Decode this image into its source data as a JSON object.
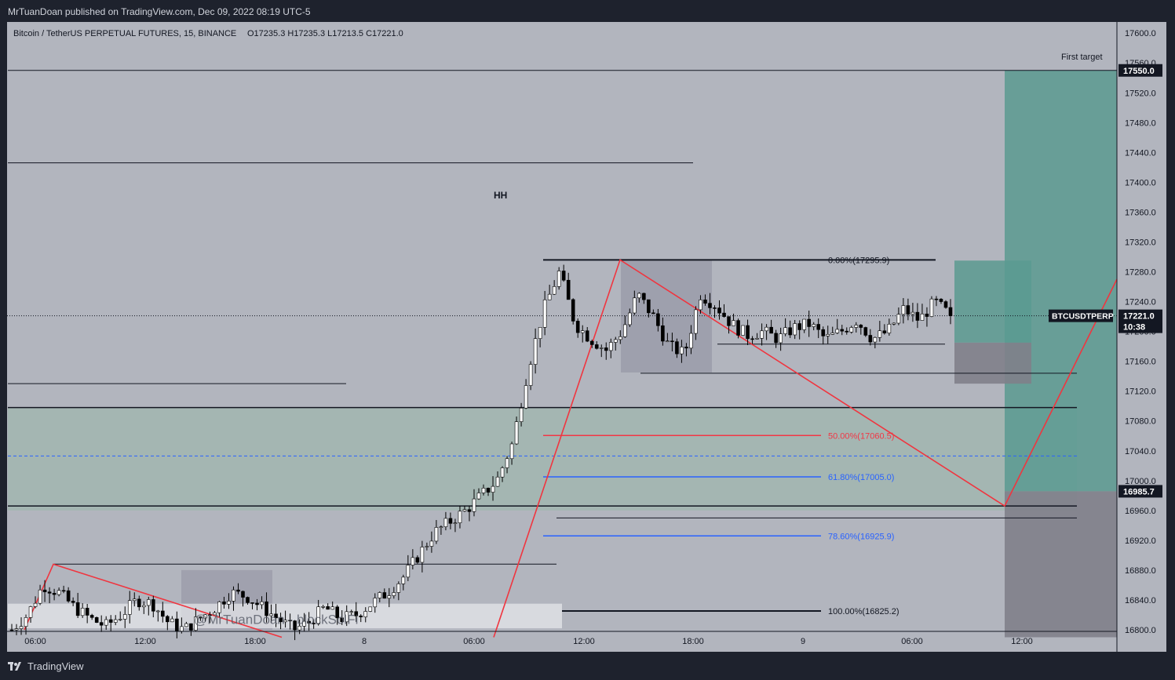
{
  "header": {
    "published": "MrTuanDoan published on TradingView.com, Dec 09, 2022 08:19 UTC-5"
  },
  "footer": {
    "brand": "TradingView"
  },
  "watermark": "@MrTuanDoan - blockSolFi",
  "colors": {
    "background": "#b2b5be",
    "chrome": "#1e222d",
    "bull": "#ffffff",
    "bear": "#000000",
    "trend": "#f0353f",
    "fib_blue": "#2962ff",
    "fib_red": "#f23645",
    "target_zone": "#5a9a90",
    "stop_zone": "#7f7f8a"
  },
  "chart_data": {
    "type": "candlestick",
    "title": "Bitcoin / TetherUS PERPETUAL FUTURES, 15, BINANCE",
    "ohlc_label": {
      "open": "O17235.3",
      "high": "H17235.3",
      "low": "L17213.5",
      "close": "C17221.0"
    },
    "symbol": "BTCUSDTPERP",
    "last_price": "17221.0",
    "countdown": "10:38",
    "y_axis": {
      "min": 16790,
      "max": 17610,
      "ticks": [
        "17600.0",
        "17560.0",
        "17520.0",
        "17480.0",
        "17440.0",
        "17400.0",
        "17360.0",
        "17320.0",
        "17280.0",
        "17240.0",
        "17200.0",
        "17160.0",
        "17120.0",
        "17080.0",
        "17040.0",
        "17000.0",
        "16960.0",
        "16920.0",
        "16880.0",
        "16840.0",
        "16800.0"
      ]
    },
    "x_axis": {
      "ticks": [
        "06:00",
        "12:00",
        "18:00",
        "8",
        "06:00",
        "12:00",
        "18:00",
        "9",
        "06:00",
        "12:00"
      ]
    },
    "price_tags": [
      {
        "label": "First target",
        "value": "17550.0"
      },
      {
        "label": "",
        "value": "16985.7"
      }
    ],
    "annotations": [
      "HH",
      "First target"
    ],
    "fibonacci": [
      {
        "ratio": "0.00%",
        "price": 17295.9,
        "label": "0.00%(17295.9)"
      },
      {
        "ratio": "50.00%",
        "price": 17060.5,
        "label": "50.00%(17060.5)"
      },
      {
        "ratio": "61.80%",
        "price": 17005.0,
        "label": "61.80%(17005.0)"
      },
      {
        "ratio": "78.60%",
        "price": 16925.9,
        "label": "78.60%(16925.9)"
      },
      {
        "ratio": "100.00%",
        "price": 16825.2,
        "label": "100.00%(16825.2)"
      }
    ],
    "candles_anchor_closes": [
      16800,
      16820,
      16860,
      16850,
      16830,
      16815,
      16805,
      16820,
      16840,
      16835,
      16810,
      16800,
      16815,
      16830,
      16850,
      16845,
      16830,
      16815,
      16800,
      16810,
      16830,
      16815,
      16820,
      16835,
      16850,
      16870,
      16900,
      16930,
      16945,
      16960,
      16980,
      17000,
      17050,
      17150,
      17230,
      17280,
      17210,
      17190,
      17175,
      17200,
      17250,
      17220,
      17180,
      17170,
      17250,
      17235,
      17210,
      17195,
      17200,
      17190,
      17205,
      17210,
      17190,
      17200,
      17215,
      17190,
      17200,
      17230,
      17215,
      17240,
      17221
    ]
  }
}
